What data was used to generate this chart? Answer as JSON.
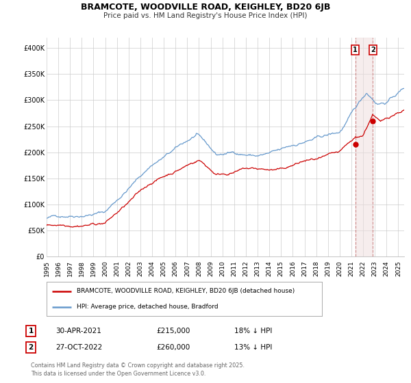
{
  "title": "BRAMCOTE, WOODVILLE ROAD, KEIGHLEY, BD20 6JB",
  "subtitle": "Price paid vs. HM Land Registry's House Price Index (HPI)",
  "legend_label_red": "BRAMCOTE, WOODVILLE ROAD, KEIGHLEY, BD20 6JB (detached house)",
  "legend_label_blue": "HPI: Average price, detached house, Bradford",
  "sale1_date": "30-APR-2021",
  "sale1_price": "£215,000",
  "sale1_hpi": "18% ↓ HPI",
  "sale1_year": 2021.33,
  "sale1_value": 215000,
  "sale2_date": "27-OCT-2022",
  "sale2_price": "£260,000",
  "sale2_hpi": "13% ↓ HPI",
  "sale2_year": 2022.83,
  "sale2_value": 260000,
  "footer": "Contains HM Land Registry data © Crown copyright and database right 2025.\nThis data is licensed under the Open Government Licence v3.0.",
  "red_color": "#cc0000",
  "blue_color": "#6699cc",
  "vline_color": "#cc8888",
  "vfill_color": "#eedddd",
  "background_color": "#ffffff",
  "grid_color": "#cccccc",
  "ylim": [
    0,
    420000
  ],
  "xlim_start": 1995.0,
  "xlim_end": 2025.5,
  "yticks": [
    0,
    50000,
    100000,
    150000,
    200000,
    250000,
    300000,
    350000,
    400000
  ],
  "xticks": [
    1995,
    1996,
    1997,
    1998,
    1999,
    2000,
    2001,
    2002,
    2003,
    2004,
    2005,
    2006,
    2007,
    2008,
    2009,
    2010,
    2011,
    2012,
    2013,
    2014,
    2015,
    2016,
    2017,
    2018,
    2019,
    2020,
    2021,
    2022,
    2023,
    2024,
    2025
  ]
}
